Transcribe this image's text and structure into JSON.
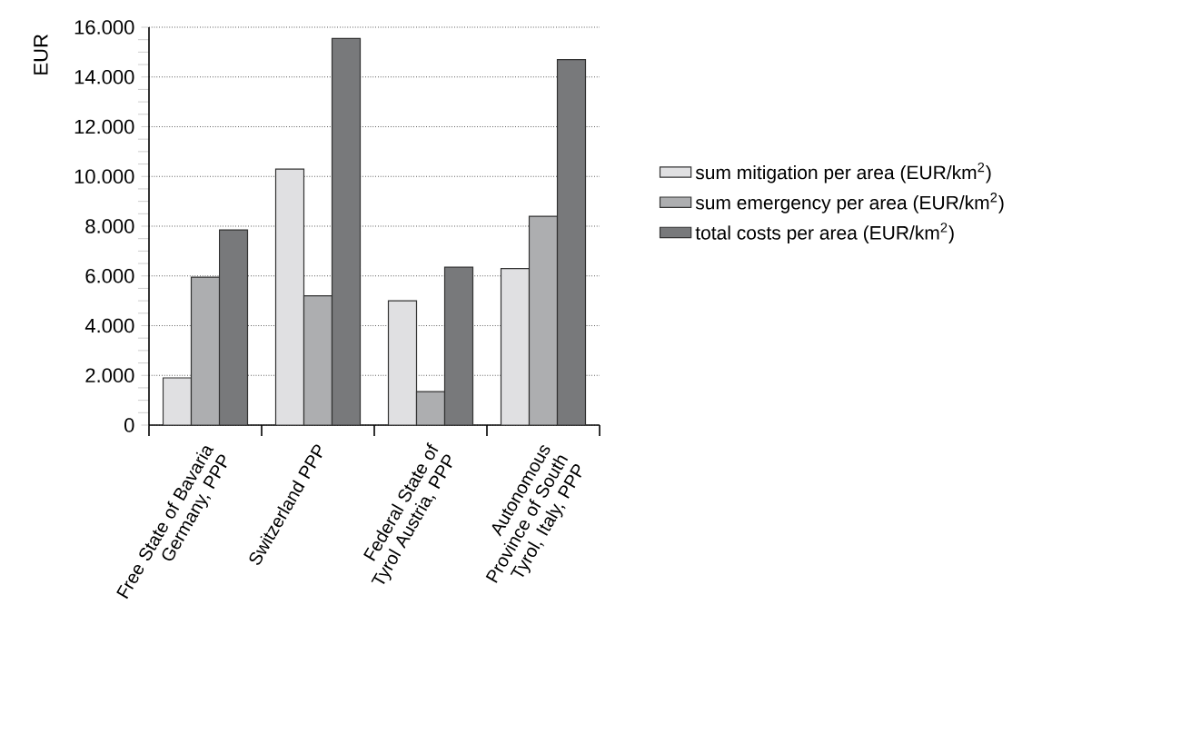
{
  "chart_data": {
    "type": "bar",
    "ylabel": "EUR",
    "categories": [
      "Free State of Bavaria Germany, PPP",
      "Switzerland PPP",
      "Federal State of Tyrol Austria, PPP",
      "Autonomous Province of South Tyrol, Italy, PPP"
    ],
    "series": [
      {
        "name": "sum mitigation per area (EUR/km$^{2}$)",
        "color": "#e0e0e2",
        "values": [
          1900,
          10300,
          5000,
          6300
        ]
      },
      {
        "name": "sum emergency per area (EUR/km$^{2}$)",
        "color": "#adaeb0",
        "values": [
          5950,
          5200,
          1350,
          8400
        ]
      },
      {
        "name": "total costs per area (EUR/km$^{2}$)",
        "color": "#78797b",
        "values": [
          7850,
          15550,
          6350,
          14700
        ]
      }
    ],
    "ylim": [
      0,
      16000
    ],
    "yticks": [
      0,
      {
        "value": 2000,
        "label": "2.000"
      },
      {
        "value": 4000,
        "label": "4.000"
      },
      {
        "value": 6000,
        "label": "6.000"
      },
      {
        "value": 8000,
        "label": "8.000"
      },
      {
        "value": 10000,
        "label": "10.000"
      },
      {
        "value": 12000,
        "label": "12.000"
      },
      {
        "value": 14000,
        "label": "14.000"
      },
      {
        "value": 16000,
        "label": "16.000"
      }
    ],
    "grid": "y",
    "legend": "right"
  }
}
